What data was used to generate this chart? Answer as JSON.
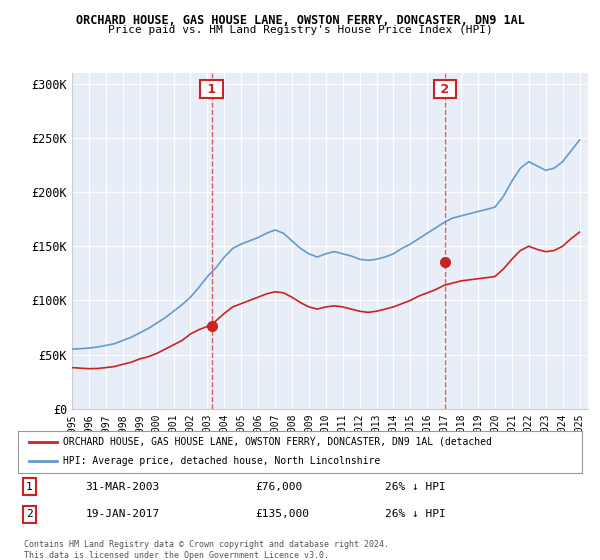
{
  "title1": "ORCHARD HOUSE, GAS HOUSE LANE, OWSTON FERRY, DONCASTER, DN9 1AL",
  "title2": "Price paid vs. HM Land Registry's House Price Index (HPI)",
  "xlabel": "",
  "ylabel": "",
  "bg_color": "#e8eef7",
  "plot_bg_color": "#e8eef7",
  "hpi_color": "#6699cc",
  "property_color": "#cc2222",
  "marker_color": "#cc2222",
  "ylim": [
    0,
    310000
  ],
  "yticks": [
    0,
    50000,
    100000,
    150000,
    200000,
    250000,
    300000
  ],
  "ytick_labels": [
    "£0",
    "£50K",
    "£100K",
    "£150K",
    "£200K",
    "£250K",
    "£300K"
  ],
  "sale1_year": 2003.25,
  "sale1_price": 76000,
  "sale1_label": "1",
  "sale1_date": "31-MAR-2003",
  "sale1_pct": "26% ↓ HPI",
  "sale2_year": 2017.05,
  "sale2_price": 135000,
  "sale2_label": "2",
  "sale2_date": "19-JAN-2017",
  "sale2_pct": "26% ↓ HPI",
  "legend_property": "ORCHARD HOUSE, GAS HOUSE LANE, OWSTON FERRY, DONCASTER, DN9 1AL (detached",
  "legend_hpi": "HPI: Average price, detached house, North Lincolnshire",
  "copyright": "Contains HM Land Registry data © Crown copyright and database right 2024.\nThis data is licensed under the Open Government Licence v3.0.",
  "hpi_years": [
    1995,
    1995.5,
    1996,
    1996.5,
    1997,
    1997.5,
    1998,
    1998.5,
    1999,
    1999.5,
    2000,
    2000.5,
    2001,
    2001.5,
    2002,
    2002.5,
    2003,
    2003.5,
    2004,
    2004.5,
    2005,
    2005.5,
    2006,
    2006.5,
    2007,
    2007.5,
    2008,
    2008.5,
    2009,
    2009.5,
    2010,
    2010.5,
    2011,
    2011.5,
    2012,
    2012.5,
    2013,
    2013.5,
    2014,
    2014.5,
    2015,
    2015.5,
    2016,
    2016.5,
    2017,
    2017.5,
    2018,
    2018.5,
    2019,
    2019.5,
    2020,
    2020.5,
    2021,
    2021.5,
    2022,
    2022.5,
    2023,
    2023.5,
    2024,
    2024.5,
    2025
  ],
  "hpi_values": [
    55000,
    55500,
    56000,
    57000,
    58500,
    60000,
    63000,
    66000,
    70000,
    74000,
    79000,
    84000,
    90000,
    96000,
    103000,
    112000,
    122000,
    130000,
    140000,
    148000,
    152000,
    155000,
    158000,
    162000,
    165000,
    162000,
    155000,
    148000,
    143000,
    140000,
    143000,
    145000,
    143000,
    141000,
    138000,
    137000,
    138000,
    140000,
    143000,
    148000,
    152000,
    157000,
    162000,
    167000,
    172000,
    176000,
    178000,
    180000,
    182000,
    184000,
    186000,
    196000,
    210000,
    222000,
    228000,
    224000,
    220000,
    222000,
    228000,
    238000,
    248000
  ],
  "prop_years": [
    1995,
    1995.5,
    1996,
    1996.5,
    1997,
    1997.5,
    1998,
    1998.5,
    1999,
    1999.5,
    2000,
    2000.5,
    2001,
    2001.5,
    2002,
    2002.5,
    2003,
    2003.5,
    2004,
    2004.5,
    2005,
    2005.5,
    2006,
    2006.5,
    2007,
    2007.5,
    2008,
    2008.5,
    2009,
    2009.5,
    2010,
    2010.5,
    2011,
    2011.5,
    2012,
    2012.5,
    2013,
    2013.5,
    2014,
    2014.5,
    2015,
    2015.5,
    2016,
    2016.5,
    2017,
    2017.5,
    2018,
    2018.5,
    2019,
    2019.5,
    2020,
    2020.5,
    2021,
    2021.5,
    2022,
    2022.5,
    2023,
    2023.5,
    2024,
    2024.5,
    2025
  ],
  "prop_values": [
    38000,
    37500,
    37000,
    37200,
    38000,
    39000,
    41000,
    43000,
    46000,
    48000,
    51000,
    55000,
    59000,
    63000,
    69000,
    73000,
    76000,
    81000,
    88000,
    94000,
    97000,
    100000,
    103000,
    106000,
    108000,
    107000,
    103000,
    98000,
    94000,
    92000,
    94000,
    95000,
    94000,
    92000,
    90000,
    89000,
    90000,
    92000,
    94000,
    97000,
    100000,
    104000,
    107000,
    110000,
    114000,
    116000,
    118000,
    119000,
    120000,
    121000,
    122000,
    129000,
    138000,
    146000,
    150000,
    147000,
    145000,
    146000,
    150000,
    157000,
    163000
  ]
}
